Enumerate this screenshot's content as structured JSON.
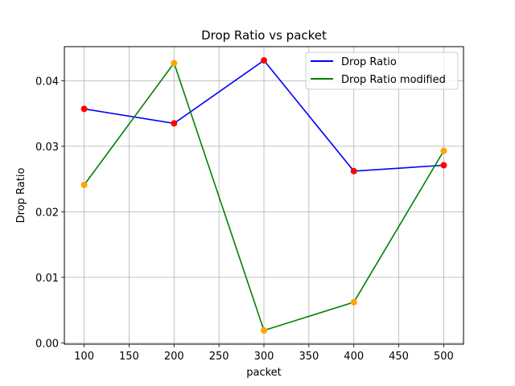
{
  "chart_data": {
    "type": "line",
    "title": "Drop Ratio vs packet",
    "xlabel": "packet",
    "ylabel": "Drop Ratio",
    "x": [
      100,
      200,
      300,
      400,
      500
    ],
    "xlim": [
      78,
      522
    ],
    "ylim": [
      -0.0002,
      0.0452
    ],
    "xticks": [
      100,
      150,
      200,
      250,
      300,
      350,
      400,
      450,
      500
    ],
    "yticks": [
      0.0,
      0.01,
      0.02,
      0.03,
      0.04
    ],
    "ytick_labels": [
      "0.00",
      "0.01",
      "0.02",
      "0.03",
      "0.04"
    ],
    "grid": true,
    "legend_position": "top-right",
    "series": [
      {
        "name": "Drop Ratio",
        "values": [
          0.0357,
          0.0335,
          0.0431,
          0.0262,
          0.0271
        ],
        "line_color": "#0000ff",
        "marker_color": "#ff0000"
      },
      {
        "name": "Drop Ratio modified",
        "values": [
          0.0241,
          0.0427,
          0.0019,
          0.0062,
          0.0293
        ],
        "line_color": "#008000",
        "marker_color": "#ffa500"
      }
    ]
  }
}
